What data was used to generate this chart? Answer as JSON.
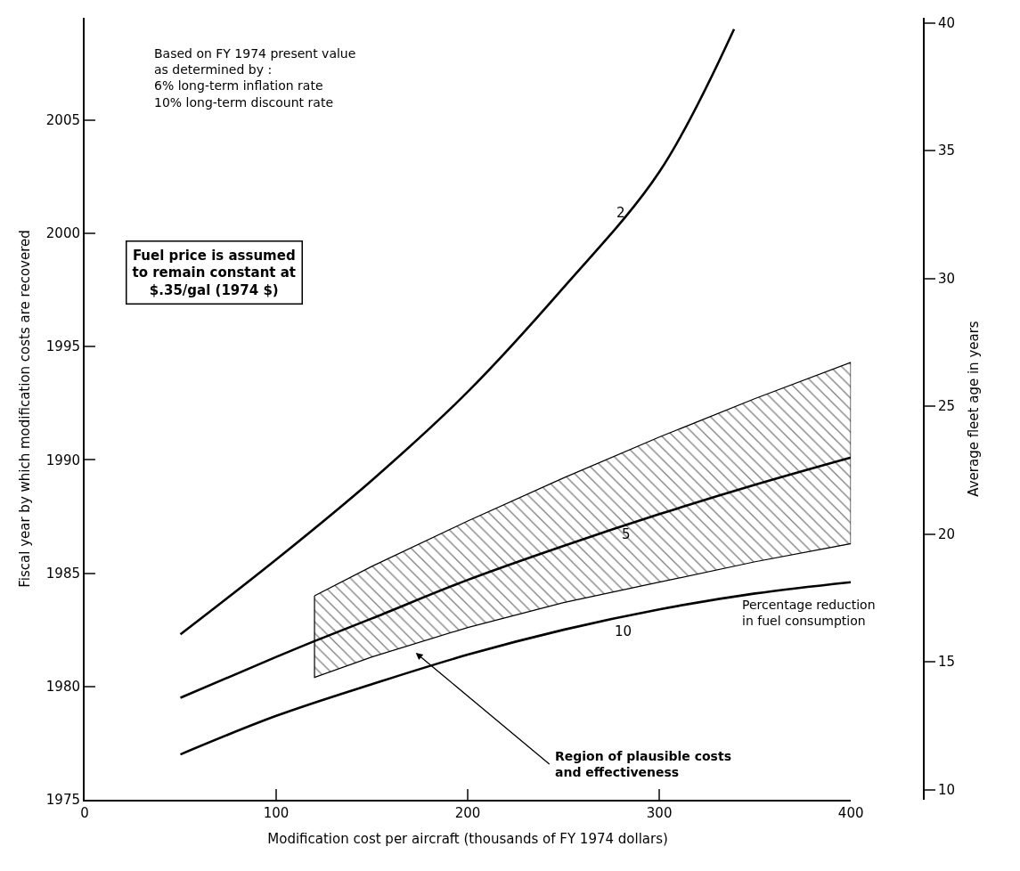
{
  "chart_data": {
    "type": "line",
    "xlabel": "Modification cost per aircraft (thousands of FY 1974 dollars)",
    "ylabel": "Fiscal year by which modification costs are recovered",
    "y2label": "Average fleet age in years",
    "xlim": [
      0,
      400
    ],
    "xticks": [
      0,
      100,
      200,
      300,
      400
    ],
    "ylim": [
      1975,
      2009.5
    ],
    "yticks": [
      1975,
      1980,
      1985,
      1990,
      1995,
      2000,
      2005
    ],
    "y2lim": [
      9.6,
      40.2
    ],
    "y2ticks": [
      10,
      15,
      20,
      25,
      30,
      35,
      40
    ],
    "marker": "none",
    "line_style": "solid",
    "series": [
      {
        "color": "#000000",
        "x": [
          50,
          100,
          150,
          200,
          250,
          300,
          339
        ],
        "values": [
          1982.3,
          1985.6,
          1989.1,
          1993.0,
          1997.6,
          2002.7,
          2009.0
        ]
      },
      {
        "color": "#000000",
        "x": [
          50,
          100,
          120,
          150,
          200,
          250,
          300,
          350,
          400
        ],
        "values": [
          1979.5,
          1981.3,
          1982.0,
          1983.0,
          1984.7,
          1986.2,
          1987.6,
          1988.9,
          1990.1
        ],
        "lower": [
          null,
          null,
          1980.4,
          1981.3,
          1982.6,
          1983.7,
          1984.6,
          1985.5,
          1986.3
        ],
        "upper": [
          null,
          null,
          1984.0,
          1985.3,
          1987.3,
          1989.2,
          1991.0,
          1992.7,
          1994.3
        ]
      },
      {
        "color": "#000000",
        "x": [
          50,
          100,
          150,
          200,
          250,
          300,
          350,
          400
        ],
        "values": [
          1977.0,
          1978.7,
          1980.1,
          1981.4,
          1982.5,
          1983.4,
          1984.1,
          1984.6
        ]
      }
    ],
    "annotations": [
      "Based on FY 1974 present value\nas determined by :\n6% long-term inflation rate\n10% long-term discount rate",
      "Fuel price is assumed\nto remain constant at\n$.35/gal (1974 $)",
      "2",
      "5",
      "10",
      "Percentage reduction\nin fuel consumption",
      "Region of plausible costs\nand effectiveness"
    ]
  }
}
